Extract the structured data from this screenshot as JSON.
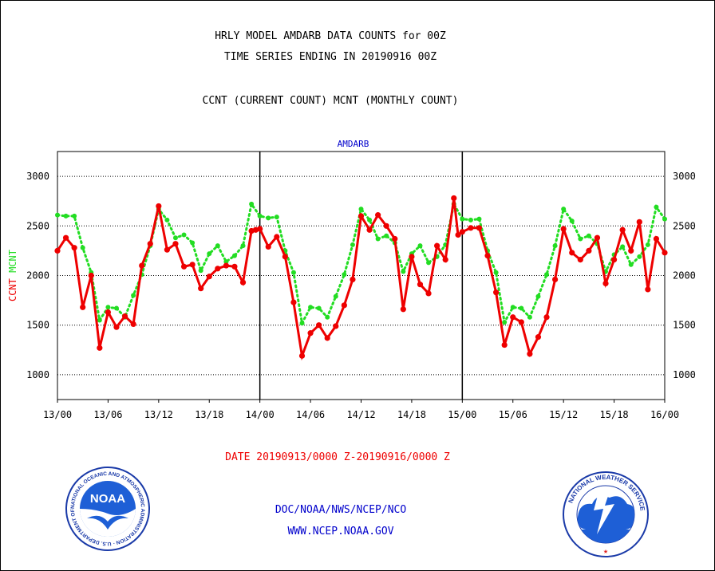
{
  "header": {
    "line1": "HRLY MODEL AMDARB DATA COUNTS for 00Z",
    "line2": "TIME SERIES ENDING IN 20190916 00Z",
    "line3": "CCNT (CURRENT COUNT) MCNT (MONTHLY COUNT)"
  },
  "chart_data": {
    "type": "line",
    "title": "AMDARB",
    "ylabel_left": [
      "CCNT",
      "MCNT"
    ],
    "ylim": [
      750,
      3250
    ],
    "yticks": [
      1000,
      1500,
      2000,
      2500,
      3000
    ],
    "ytick_labels": [
      "1000",
      "1500",
      "2000",
      "2500",
      "3000"
    ],
    "xlim": [
      0,
      72
    ],
    "xticks": [
      0,
      6,
      12,
      18,
      24,
      30,
      36,
      42,
      48,
      54,
      60,
      66,
      72
    ],
    "xtick_labels": [
      "13/00",
      "13/06",
      "13/12",
      "13/18",
      "14/00",
      "14/06",
      "14/12",
      "14/18",
      "15/00",
      "15/06",
      "15/12",
      "15/18",
      "16/00"
    ],
    "day_dividers": [
      24,
      48
    ],
    "grid": "dotted horizontal",
    "colors": {
      "ccnt": "#ee0000",
      "mcnt": "#22dd22",
      "ylabel_ccnt": "#ee0000",
      "ylabel_mcnt": "#22dd22",
      "title": "#0000cc"
    },
    "series": [
      {
        "name": "CCNT",
        "x": [
          0,
          1,
          2,
          3,
          4,
          5,
          6,
          7,
          8,
          9,
          10,
          11,
          12,
          13,
          14,
          15,
          16,
          17,
          18,
          19,
          20,
          21,
          22,
          23,
          23.5,
          24,
          25,
          26,
          27,
          28,
          29,
          30,
          31,
          32,
          33,
          34,
          35,
          36,
          37,
          38,
          39,
          40,
          41,
          42,
          43,
          44,
          45,
          46,
          47,
          47.5,
          48,
          49,
          50,
          51,
          52,
          53,
          54,
          55,
          56,
          57,
          58,
          59,
          60,
          61,
          62,
          63,
          64,
          65,
          66,
          67,
          68,
          69,
          70,
          71,
          72
        ],
        "values": [
          2250,
          2380,
          2280,
          1680,
          2000,
          1270,
          1630,
          1480,
          1590,
          1510,
          2100,
          2320,
          2700,
          2260,
          2320,
          2090,
          2110,
          1870,
          1990,
          2070,
          2100,
          2090,
          1930,
          2450,
          2460,
          2470,
          2290,
          2390,
          2190,
          1730,
          1190,
          1420,
          1500,
          1370,
          1490,
          1700,
          1960,
          2600,
          2460,
          2610,
          2500,
          2370,
          1660,
          2190,
          1910,
          1820,
          2300,
          2160,
          2780,
          2410,
          2440,
          2480,
          2480,
          2200,
          1830,
          1300,
          1580,
          1530,
          1210,
          1380,
          1580,
          1960,
          2470,
          2230,
          2160,
          2250,
          2380,
          1920,
          2160,
          2460,
          2250,
          2540,
          1860,
          2370,
          2230
        ]
      },
      {
        "name": "MCNT",
        "x": [
          0,
          1,
          2,
          3,
          4,
          5,
          6,
          7,
          8,
          9,
          10,
          11,
          12,
          13,
          14,
          15,
          16,
          17,
          18,
          19,
          20,
          21,
          22,
          23,
          24,
          25,
          26,
          27,
          28,
          29,
          30,
          31,
          32,
          33,
          34,
          35,
          36,
          37,
          38,
          39,
          40,
          41,
          42,
          43,
          44,
          45,
          46,
          47,
          48,
          49,
          50,
          51,
          52,
          53,
          54,
          55,
          56,
          57,
          58,
          59,
          60,
          61,
          62,
          63,
          64,
          65,
          66,
          67,
          68,
          69,
          70,
          71,
          72
        ],
        "values": [
          2610,
          2600,
          2600,
          2280,
          2030,
          1550,
          1680,
          1670,
          1580,
          1800,
          2010,
          2300,
          2670,
          2560,
          2380,
          2410,
          2330,
          2050,
          2220,
          2300,
          2140,
          2200,
          2300,
          2720,
          2600,
          2580,
          2590,
          2250,
          2030,
          1520,
          1680,
          1670,
          1580,
          1790,
          2010,
          2310,
          2670,
          2560,
          2370,
          2400,
          2330,
          2040,
          2220,
          2300,
          2130,
          2190,
          2310,
          2720,
          2570,
          2560,
          2570,
          2250,
          2030,
          1530,
          1680,
          1670,
          1580,
          1790,
          2010,
          2300,
          2670,
          2550,
          2370,
          2400,
          2320,
          2040,
          2210,
          2290,
          2110,
          2190,
          2310,
          2690,
          2570
        ]
      }
    ]
  },
  "footer": {
    "date_range": "DATE 20190913/0000 Z-20190916/0000 Z",
    "org_line": "DOC/NOAA/NWS/NCEP/NCO",
    "url_line": "WWW.NCEP.NOAA.GOV",
    "noaa_logo_text": "NOAA",
    "noaa_ring_text": "NATIONAL OCEANIC AND ATMOSPHERIC ADMINISTRATION · U.S. DEPARTMENT OF COMMERCE",
    "nws_ring_text": "NATIONAL WEATHER SERVICE"
  }
}
